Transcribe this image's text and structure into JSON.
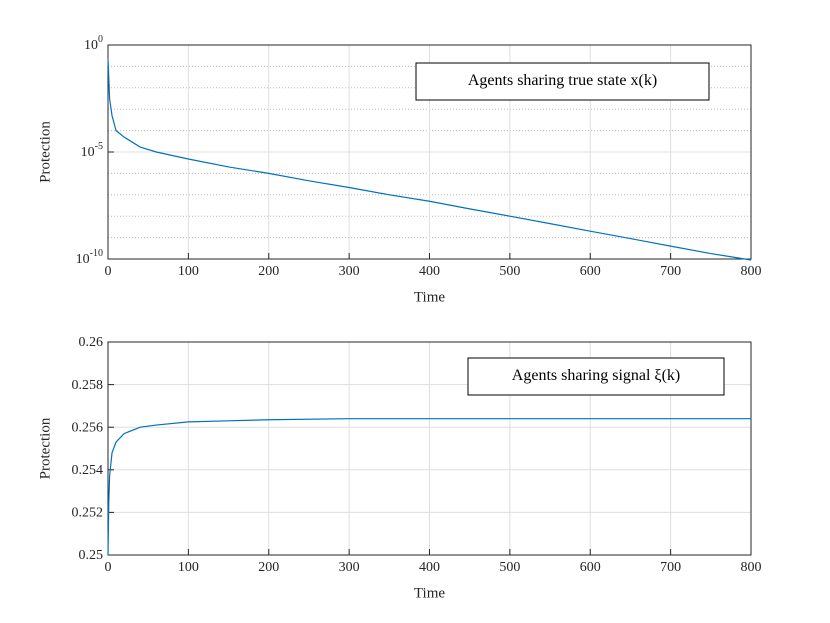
{
  "chart_data": [
    {
      "type": "line",
      "xlabel": "Time",
      "ylabel": "Protection",
      "log_y": true,
      "grid": true,
      "minor_grid": true,
      "annotation": "Agents sharing true state x(k)",
      "xlim": [
        0,
        800
      ],
      "xticks": [
        0,
        100,
        200,
        300,
        400,
        500,
        600,
        700,
        800
      ],
      "ylim": [
        1e-10,
        1
      ],
      "yticks": [
        {
          "value": 1e-10,
          "label": "10^-10"
        },
        {
          "value": 1e-05,
          "label": "10^-5"
        },
        {
          "value": 1,
          "label": "10^0"
        }
      ],
      "series": [
        {
          "color": "#0072bd",
          "x": [
            0,
            2,
            5,
            10,
            20,
            40,
            60,
            100,
            150,
            200,
            250,
            300,
            350,
            400,
            450,
            500,
            550,
            600,
            650,
            700,
            750,
            800
          ],
          "values": [
            0.25,
            0.003,
            0.0005,
            0.0001,
            5e-05,
            1.7e-05,
            1e-05,
            4.7e-06,
            2e-06,
            1e-06,
            4.5e-07,
            2.2e-07,
            1e-07,
            5e-08,
            2.2e-08,
            1e-08,
            4.5e-09,
            2e-09,
            9e-10,
            4e-10,
            1.8e-10,
            9e-11
          ]
        }
      ]
    },
    {
      "type": "line",
      "xlabel": "Time",
      "ylabel": "Protection",
      "log_y": false,
      "grid": true,
      "annotation": "Agents sharing signal ξ(k)",
      "xlim": [
        0,
        800
      ],
      "xticks": [
        0,
        100,
        200,
        300,
        400,
        500,
        600,
        700,
        800
      ],
      "ylim": [
        0.25,
        0.26
      ],
      "yticks": [
        0.25,
        0.252,
        0.254,
        0.256,
        0.258,
        0.26
      ],
      "series": [
        {
          "color": "#0072bd",
          "x": [
            0,
            1,
            2,
            5,
            10,
            20,
            40,
            60,
            100,
            150,
            200,
            300,
            400,
            800
          ],
          "values": [
            0.25,
            0.2525,
            0.2537,
            0.2548,
            0.2553,
            0.2557,
            0.256,
            0.2561,
            0.25625,
            0.2563,
            0.25635,
            0.2564,
            0.2564,
            0.2564
          ]
        }
      ]
    }
  ]
}
